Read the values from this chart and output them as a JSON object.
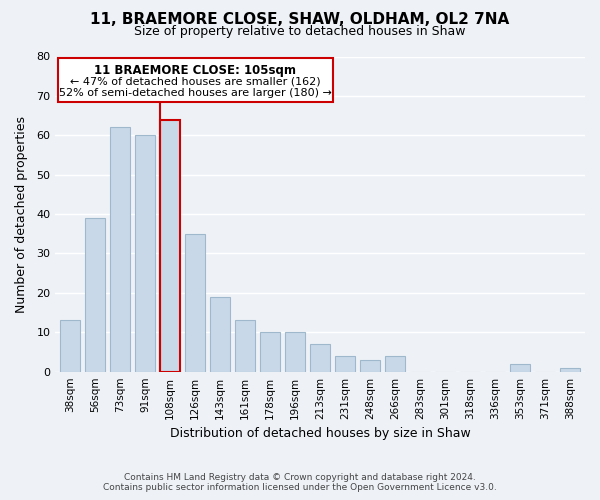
{
  "title": "11, BRAEMORE CLOSE, SHAW, OLDHAM, OL2 7NA",
  "subtitle": "Size of property relative to detached houses in Shaw",
  "xlabel": "Distribution of detached houses by size in Shaw",
  "ylabel": "Number of detached properties",
  "categories": [
    "38sqm",
    "56sqm",
    "73sqm",
    "91sqm",
    "108sqm",
    "126sqm",
    "143sqm",
    "161sqm",
    "178sqm",
    "196sqm",
    "213sqm",
    "231sqm",
    "248sqm",
    "266sqm",
    "283sqm",
    "301sqm",
    "318sqm",
    "336sqm",
    "353sqm",
    "371sqm",
    "388sqm"
  ],
  "values": [
    13,
    39,
    62,
    60,
    64,
    35,
    19,
    13,
    10,
    10,
    7,
    4,
    3,
    4,
    0,
    0,
    0,
    0,
    2,
    0,
    1
  ],
  "bar_color": "#c8d8e8",
  "bar_edge_color": "#a0b8cc",
  "highlight_bar_index": 4,
  "highlight_bar_color": "#c8d8e8",
  "highlight_bar_edge_color": "#cc0000",
  "vline_color": "#cc0000",
  "ylim": [
    0,
    80
  ],
  "yticks": [
    0,
    10,
    20,
    30,
    40,
    50,
    60,
    70,
    80
  ],
  "annotation_title": "11 BRAEMORE CLOSE: 105sqm",
  "annotation_line1": "← 47% of detached houses are smaller (162)",
  "annotation_line2": "52% of semi-detached houses are larger (180) →",
  "annotation_box_color": "#ffffff",
  "annotation_box_edge_color": "#cc0000",
  "footer_line1": "Contains HM Land Registry data © Crown copyright and database right 2024.",
  "footer_line2": "Contains public sector information licensed under the Open Government Licence v3.0.",
  "background_color": "#eef2f7",
  "grid_color": "#ffffff",
  "title_fontsize": 11,
  "subtitle_fontsize": 9
}
